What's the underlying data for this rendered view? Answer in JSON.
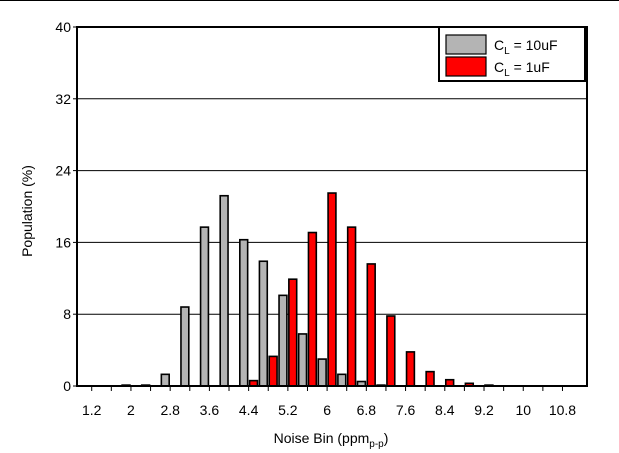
{
  "chart_data": {
    "type": "bar",
    "title": "",
    "xlabel": "Noise Bin (ppm",
    "xlabel_sub": "p-p",
    "xlabel_close": ")",
    "ylabel": "Population (%)",
    "ylim": [
      0,
      40
    ],
    "yticks": [
      "0",
      "8",
      "16",
      "24",
      "32",
      "40"
    ],
    "ytick_values": [
      0,
      8,
      16,
      24,
      32,
      40
    ],
    "xticks": [
      "1.2",
      "2",
      "2.8",
      "3.6",
      "4.4",
      "5.2",
      "6",
      "6.8",
      "7.6",
      "8.4",
      "9.2",
      "10",
      "10.8"
    ],
    "xtick_values": [
      1.2,
      2,
      2.8,
      3.6,
      4.4,
      5.2,
      6,
      6.8,
      7.6,
      8.4,
      9.2,
      10,
      10.8
    ],
    "xlim": [
      0.9,
      11.3
    ],
    "grid": "horizontal",
    "legend_position": "top-right",
    "bin_width": 0.4,
    "bins": [
      1.2,
      1.6,
      2.0,
      2.4,
      2.8,
      3.2,
      3.6,
      4.0,
      4.4,
      4.8,
      5.2,
      5.6,
      6.0,
      6.4,
      6.8,
      7.2,
      7.6,
      8.0,
      8.4,
      8.8,
      9.2,
      9.6,
      10.0,
      10.4,
      10.8
    ],
    "series": [
      {
        "name_main": "C",
        "name_sub": "L",
        "name_rest": " = 10uF",
        "color": "#b4b4b4",
        "values": [
          0,
          0,
          0.1,
          0.1,
          1.3,
          8.8,
          17.7,
          21.2,
          16.3,
          13.9,
          10.1,
          5.8,
          3.0,
          1.3,
          0.5,
          0.1,
          0,
          0,
          0,
          0,
          0,
          0,
          0,
          0,
          0
        ]
      },
      {
        "name_main": "C",
        "name_sub": "L",
        "name_rest": " = 1uF",
        "color": "#ff0000",
        "values": [
          0,
          0,
          0,
          0,
          0,
          0,
          0,
          0,
          0.6,
          3.3,
          11.9,
          17.1,
          21.5,
          17.7,
          13.6,
          7.8,
          3.8,
          1.6,
          0.7,
          0.3,
          0.1,
          0,
          0,
          0,
          0
        ]
      }
    ]
  }
}
